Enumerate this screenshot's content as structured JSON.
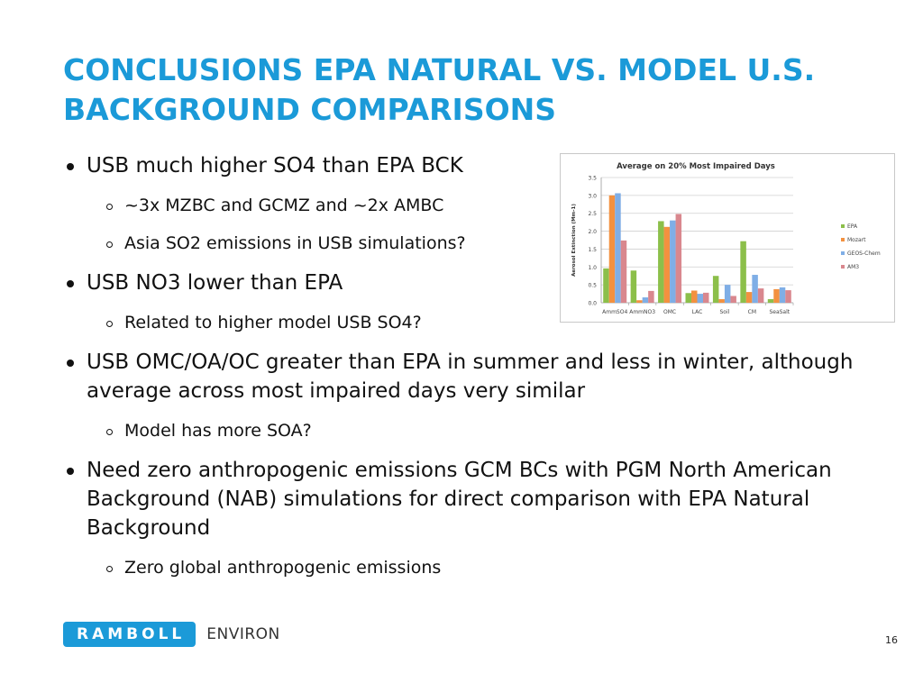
{
  "slide": {
    "title_line1": "CONCLUSIONS EPA NATURAL VS. MODEL U.S.",
    "title_line2": "BACKGROUND COMPARISONS",
    "page_number": "16",
    "accent_color": "#1b9ad8"
  },
  "bullets": [
    {
      "level": 1,
      "text": "USB much higher SO4 than EPA BCK"
    },
    {
      "level": 2,
      "text": "~3x MZBC and GCMZ and ~2x AMBC"
    },
    {
      "level": 2,
      "text": "Asia SO2 emissions in USB simulations?"
    },
    {
      "level": 1,
      "text": "USB NO3 lower than EPA"
    },
    {
      "level": 2,
      "text": "Related to higher model USB SO4?"
    },
    {
      "level": 1,
      "text": "USB OMC/OA/OC greater than EPA in summer and less in winter, although average across most impaired days very similar"
    },
    {
      "level": 2,
      "text": "Model has more SOA?"
    },
    {
      "level": 1,
      "text": "Need zero anthropogenic emissions GCM BCs with PGM North American Background (NAB) simulations for direct comparison with EPA Natural Background"
    },
    {
      "level": 2,
      "text": "Zero global anthropogenic emissions"
    }
  ],
  "logo": {
    "brand": "RAMBOLL",
    "sub": "ENVIRON"
  },
  "chart_data": {
    "type": "bar",
    "title": "Average on 20% Most Impaired Days",
    "xlabel": "",
    "ylabel": "Aerosol Extinction (Mm-1)",
    "ylim": [
      0,
      3.5
    ],
    "yticks": [
      "0.0",
      "0.5",
      "1.0",
      "1.5",
      "2.0",
      "2.5",
      "3.0",
      "3.5"
    ],
    "grid": true,
    "legend_position": "right",
    "categories": [
      "AmmSO4",
      "AmmNO3",
      "OMC",
      "LAC",
      "Soil",
      "CM",
      "SeaSalt"
    ],
    "series": [
      {
        "name": "EPA",
        "color": "#8cbf4a",
        "values": [
          0.96,
          0.9,
          2.28,
          0.27,
          0.75,
          1.72,
          0.1
        ]
      },
      {
        "name": "Mozart",
        "color": "#f39140",
        "values": [
          3.0,
          0.07,
          2.12,
          0.34,
          0.1,
          0.3,
          0.38
        ]
      },
      {
        "name": "GEOS-Chem",
        "color": "#7faee6",
        "values": [
          3.06,
          0.15,
          2.3,
          0.25,
          0.5,
          0.78,
          0.43
        ]
      },
      {
        "name": "AM3",
        "color": "#d9878e",
        "values": [
          1.74,
          0.33,
          2.48,
          0.28,
          0.19,
          0.4,
          0.35
        ]
      }
    ]
  }
}
